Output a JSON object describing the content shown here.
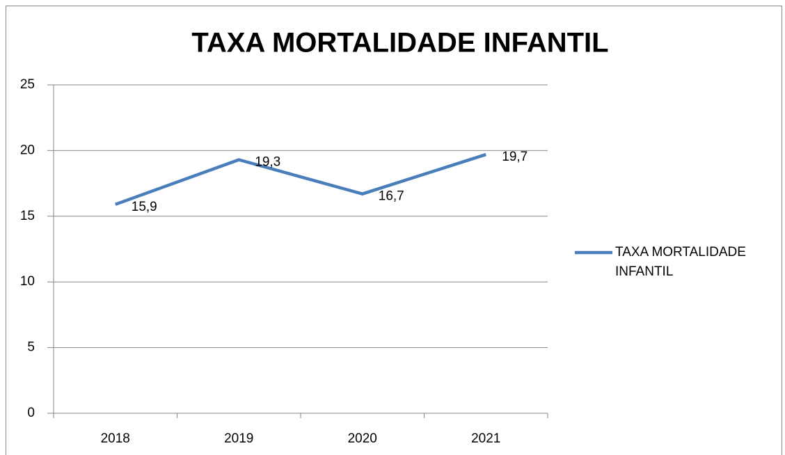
{
  "chart_data": {
    "type": "line",
    "title": "TAXA MORTALIDADE INFANTIL",
    "categories": [
      "2018",
      "2019",
      "2020",
      "2021"
    ],
    "series": [
      {
        "name": "TAXA MORTALIDADE INFANTIL",
        "color": "#4a7ebb",
        "values": [
          15.9,
          19.3,
          16.7,
          19.7
        ],
        "value_labels": [
          "15,9",
          "19,3",
          "16,7",
          "19,7"
        ]
      }
    ],
    "ylim": [
      0,
      25
    ],
    "yticks": [
      0,
      5,
      10,
      15,
      20,
      25
    ],
    "grid": true,
    "legend": "right"
  }
}
